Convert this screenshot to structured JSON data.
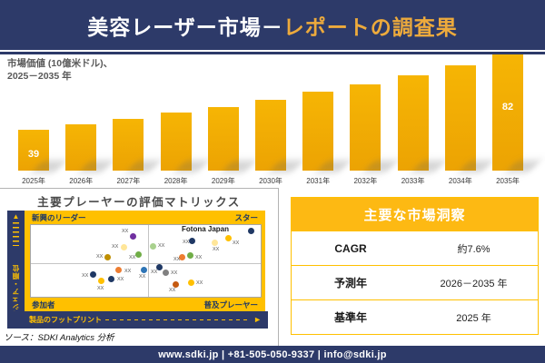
{
  "colors": {
    "navy": "#2d3a69",
    "header_gold_text": "#edaa3c",
    "bar_gold": "#efa500",
    "band_gold": "#ffc000",
    "quadrant_label_navy": "#1f3864"
  },
  "header": {
    "title_white": "美容レーザー市場－",
    "title_gold": "レポートの調査果"
  },
  "chart_data": [
    {
      "type": "bar",
      "title": "市場価値 (10億米ドル)、2025－2035 年",
      "subtitle_lines": [
        "市場価値 (10億米ドル)、",
        "2025－2035 年"
      ],
      "categories": [
        "2025年",
        "2026年",
        "2027年",
        "2028年",
        "2029年",
        "2030年",
        "2031年",
        "2032年",
        "2033年",
        "2034年",
        "2035年"
      ],
      "values": [
        39,
        42,
        45,
        49,
        52,
        56,
        61,
        65,
        70,
        76,
        82
      ],
      "value_labels": {
        "0": "39",
        "10": "82"
      },
      "xlabel": "",
      "ylabel": "10億米ドル",
      "ylim": [
        0,
        90
      ],
      "grid": false,
      "legend": "none",
      "bar_color": "#efa500"
    },
    {
      "type": "scatter",
      "title": "主要プレーヤーの評価マトリックス",
      "xlabel": "製品のフットプリント",
      "ylabel": "市場シェア・順位",
      "quadrants": {
        "top_left": "新興のリーダー",
        "top_right": "スター",
        "bottom_left": "参加者",
        "bottom_right": "普及プレーヤー"
      },
      "points": [
        {
          "x": 112,
          "y": 12,
          "color": "#7030A0",
          "label": "XX",
          "lo": [
            -12,
            -7
          ]
        },
        {
          "x": 102,
          "y": 24,
          "color": "#FFE699",
          "label": "XX",
          "lo": [
            -13,
            -2
          ]
        },
        {
          "x": 84,
          "y": 35,
          "color": "#BF8F00",
          "label": "XX",
          "lo": [
            -12,
            -2
          ]
        },
        {
          "x": 118,
          "y": 32,
          "color": "#70AD47",
          "label": "XX",
          "lo": [
            -10,
            2
          ]
        },
        {
          "x": 96,
          "y": 49,
          "color": "#ED7D31",
          "label": "XX",
          "lo": [
            7,
            0
          ]
        },
        {
          "x": 68,
          "y": 54,
          "color": "#1F3864",
          "label": "XX",
          "lo": [
            -12,
            0
          ]
        },
        {
          "x": 77,
          "y": 61,
          "color": "#FFC000",
          "label": "XX",
          "lo": [
            -4,
            7
          ]
        },
        {
          "x": 88,
          "y": 59,
          "color": "#1F3864",
          "label": "XX",
          "lo": [
            7,
            -1
          ]
        },
        {
          "x": 242,
          "y": 6,
          "color": "#1F3864",
          "label": "Fotona Japan",
          "lo": [
            -76,
            -5
          ]
        },
        {
          "x": 217,
          "y": 14,
          "color": "#FFC000",
          "label": "XX",
          "lo": [
            5,
            4
          ]
        },
        {
          "x": 202,
          "y": 19,
          "color": "#FFE699",
          "label": "XX",
          "lo": [
            -2,
            6
          ]
        },
        {
          "x": 177,
          "y": 17,
          "color": "#1F3864",
          "label": "XX",
          "lo": [
            -10,
            0
          ]
        },
        {
          "x": 134,
          "y": 23,
          "color": "#A9D18E",
          "label": "XX",
          "lo": [
            6,
            -2
          ]
        },
        {
          "x": 166,
          "y": 35,
          "color": "#ED7D31",
          "label": "XX",
          "lo": [
            -9,
            1
          ]
        },
        {
          "x": 175,
          "y": 33,
          "color": "#70AD47",
          "label": "XX",
          "lo": [
            6,
            1
          ]
        },
        {
          "x": 124,
          "y": 49,
          "color": "#2E75B6",
          "label": "XX",
          "lo": [
            -5,
            6
          ]
        },
        {
          "x": 141,
          "y": 46,
          "color": "#1F3864",
          "label": "XX",
          "lo": [
            -9,
            4
          ]
        },
        {
          "x": 148,
          "y": 52,
          "color": "#808080",
          "label": "XX",
          "lo": [
            6,
            -1
          ]
        },
        {
          "x": 159,
          "y": 65,
          "color": "#C55A11",
          "label": "XX",
          "lo": [
            -7,
            5
          ]
        },
        {
          "x": 176,
          "y": 63,
          "color": "#FFC000",
          "label": "XX",
          "lo": [
            6,
            -1
          ]
        }
      ]
    },
    {
      "type": "table",
      "title": "主要な市場洞察",
      "rows": [
        [
          "CAGR",
          "約7.6%"
        ],
        [
          "予測年",
          "2026－2035 年"
        ],
        [
          "基準年",
          "2025 年"
        ]
      ]
    }
  ],
  "source": "ソース：SDKI Analytics 分析",
  "footer": {
    "text": "www.sdki.jp | +81-505-050-9337 | info@sdki.jp"
  }
}
